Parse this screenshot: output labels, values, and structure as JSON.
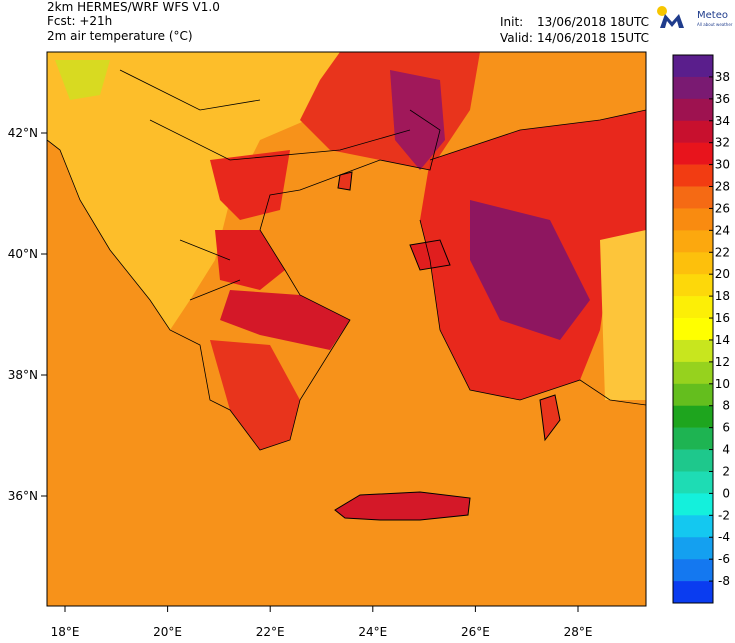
{
  "header": {
    "line1": "2km HERMES/WRF WFS V1.0",
    "line2": "Fcst: +21h",
    "line3": "2m air temperature (°C)",
    "init_label": "Init:",
    "init_value": "13/06/2018 18UTC",
    "valid_label": "Valid:",
    "valid_value": "14/06/2018 15UTC"
  },
  "logo": {
    "name": "Meteo",
    "tagline": "All about weather"
  },
  "map": {
    "lon_labels": [
      "18°E",
      "20°E",
      "22°E",
      "24°E",
      "26°E",
      "28°E"
    ],
    "lat_labels": [
      "42°N",
      "40°N",
      "38°N",
      "36°N"
    ]
  },
  "colorbar": {
    "labels": [
      38,
      36,
      34,
      32,
      30,
      28,
      26,
      24,
      22,
      20,
      18,
      16,
      14,
      12,
      10,
      8,
      6,
      4,
      2,
      0,
      -2,
      -4,
      -6,
      -8
    ],
    "colors": [
      "#5a1e8c",
      "#7a1a72",
      "#9e1250",
      "#c8102e",
      "#e8141c",
      "#f23c12",
      "#f56a14",
      "#f98b10",
      "#fca80e",
      "#fdc00c",
      "#fdd80a",
      "#fcef06",
      "#ffff00",
      "#c8e61e",
      "#96d21e",
      "#64be1e",
      "#1ea51e",
      "#1eb452",
      "#1ec88c",
      "#1edcb4",
      "#14f0dc",
      "#14c8f0",
      "#14a0f0",
      "#1478f0",
      "#0a3cf0"
    ]
  }
}
